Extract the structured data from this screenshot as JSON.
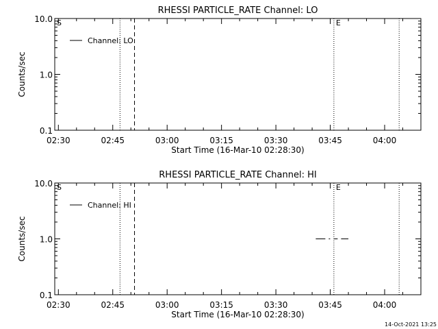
{
  "chart_data": [
    {
      "type": "line",
      "title": "RHESSI PARTICLE_RATE Channel: LO",
      "xlabel": "Start Time (16-Mar-10 02:28:30)",
      "ylabel": "Counts/sec",
      "y_scale": "log",
      "ylim": [
        0.1,
        10.0
      ],
      "xlim": [
        "02:29",
        "04:10"
      ],
      "x_ticks": [
        "02:30",
        "02:45",
        "03:00",
        "03:15",
        "03:30",
        "03:45",
        "04:00"
      ],
      "y_ticks": [
        "0.1",
        "1.0",
        "10.0"
      ],
      "legend": {
        "placement": "top-left",
        "entries": [
          "Channel: LO"
        ]
      },
      "markers": [
        {
          "label": "S",
          "time": "02:29",
          "style": "text"
        },
        {
          "label": "E",
          "time": "03:46",
          "style": "text"
        }
      ],
      "vlines": [
        {
          "time": "02:47",
          "style": "dotted"
        },
        {
          "time": "02:51",
          "style": "dashed"
        },
        {
          "time": "03:46",
          "style": "dotted"
        },
        {
          "time": "04:04",
          "style": "dotted"
        }
      ],
      "series": [
        {
          "name": "Channel: LO",
          "x": [],
          "values": []
        }
      ]
    },
    {
      "type": "line",
      "title": "RHESSI PARTICLE_RATE Channel: HI",
      "xlabel": "Start Time (16-Mar-10 02:28:30)",
      "ylabel": "Counts/sec",
      "y_scale": "log",
      "ylim": [
        0.1,
        10.0
      ],
      "xlim": [
        "02:29",
        "04:10"
      ],
      "x_ticks": [
        "02:30",
        "02:45",
        "03:00",
        "03:15",
        "03:30",
        "03:45",
        "04:00"
      ],
      "y_ticks": [
        "0.1",
        "1.0",
        "10.0"
      ],
      "legend": {
        "placement": "top-left",
        "entries": [
          "Channel: HI"
        ]
      },
      "markers": [
        {
          "label": "S",
          "time": "02:29",
          "style": "text"
        },
        {
          "label": "E",
          "time": "03:46",
          "style": "text"
        }
      ],
      "vlines": [
        {
          "time": "02:47",
          "style": "dotted"
        },
        {
          "time": "02:51",
          "style": "dashed"
        },
        {
          "time": "03:46",
          "style": "dotted"
        },
        {
          "time": "04:04",
          "style": "dotted"
        }
      ],
      "series": [
        {
          "name": "Channel: HI",
          "x": [
            "03:41",
            "03:50"
          ],
          "values": [
            1.0,
            1.0
          ],
          "style": "dash-dot"
        }
      ]
    }
  ],
  "footer_timestamp": "14-Oct-2021 13:25"
}
